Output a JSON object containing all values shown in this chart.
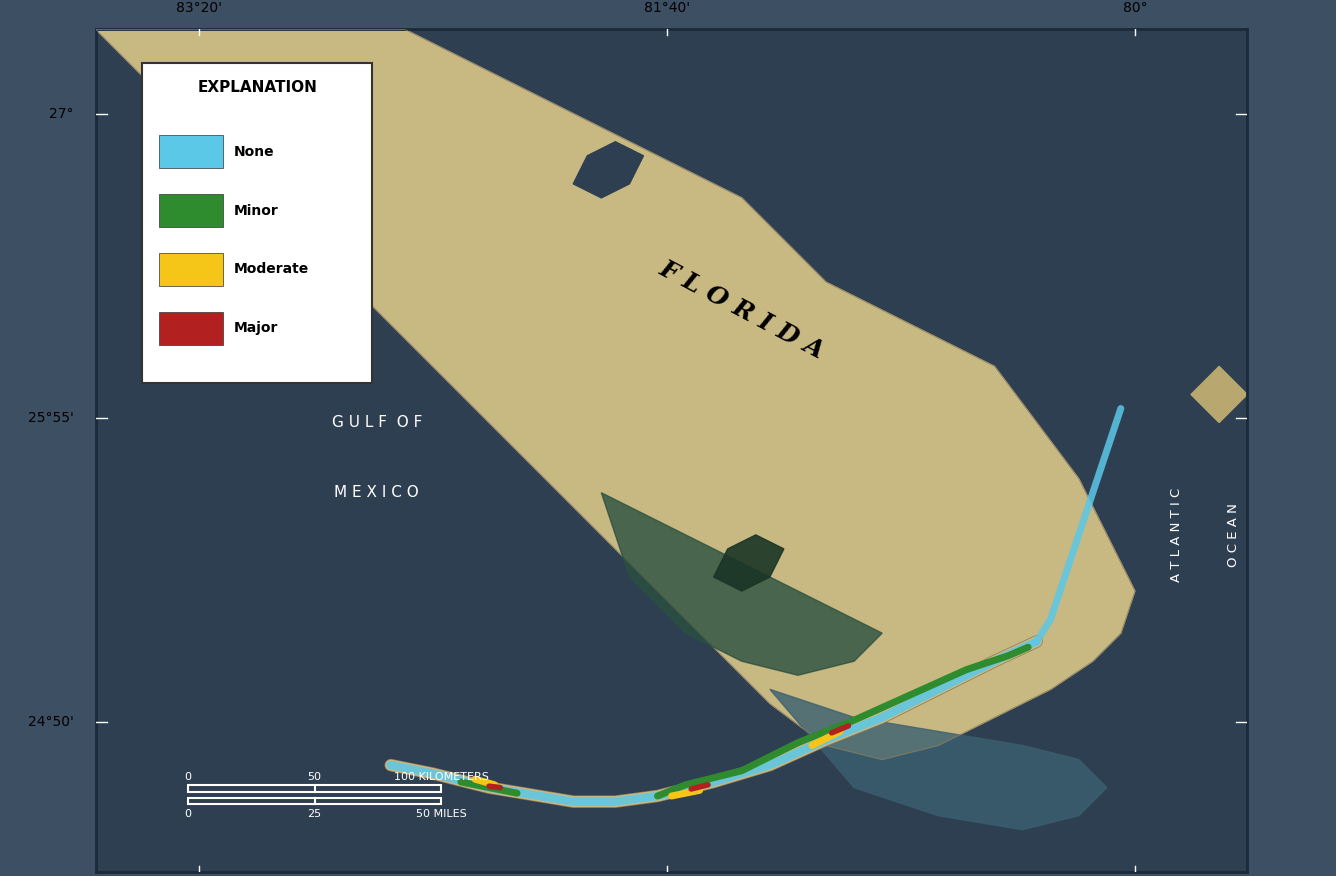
{
  "title": "",
  "background_color": "#3d4f63",
  "map_border_color": "#1a2a3a",
  "lat_labels": [
    "27°",
    "25°55'",
    "24°50'"
  ],
  "lon_labels": [
    "83°20'",
    "81°40'",
    "80°"
  ],
  "legend_title": "EXPLANATION",
  "legend_items": [
    {
      "label": "None",
      "color": "#5bc8e8"
    },
    {
      "label": "Minor",
      "color": "#2e8b2e"
    },
    {
      "label": "Moderate",
      "color": "#f5c518"
    },
    {
      "label": "Major",
      "color": "#b22020"
    }
  ],
  "florida_label": "F L O R I D A",
  "gulf_line1": "G U L F  O F",
  "gulf_line2": "M E X I C O",
  "atlantic_line1": "A T L A N T I C",
  "atlantic_line2": "O C E A N",
  "scale_bar_km": [
    0,
    50,
    100
  ],
  "scale_bar_miles": [
    0,
    25,
    50
  ],
  "ocean_color": "#2e3f52",
  "land_color": "#c8b882",
  "shallow_water_color": "#4a7a8a",
  "figsize": [
    13.36,
    8.76
  ],
  "dpi": 100
}
